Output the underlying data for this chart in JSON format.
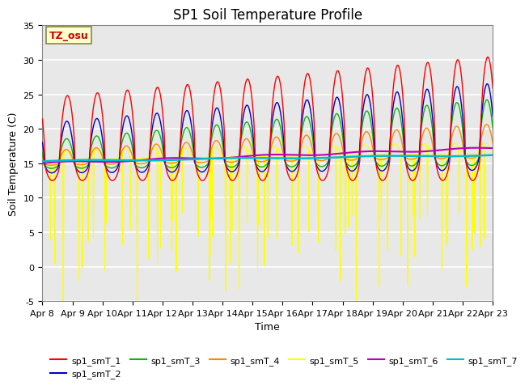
{
  "title": "SP1 Soil Temperature Profile",
  "xlabel": "Time",
  "ylabel": "Soil Temperature (C)",
  "ylim": [
    -5,
    35
  ],
  "xlim_days": [
    0,
    15
  ],
  "x_tick_labels": [
    "Apr 8",
    "Apr 9",
    "Apr 10",
    "Apr 11",
    "Apr 12",
    "Apr 13",
    "Apr 14",
    "Apr 15",
    "Apr 16",
    "Apr 17",
    "Apr 18",
    "Apr 19",
    "Apr 20",
    "Apr 21",
    "Apr 22",
    "Apr 23"
  ],
  "annotation_text": "TZ_osu",
  "annotation_bg": "#ffffcc",
  "annotation_color": "#cc0000",
  "annotation_edge": "#888844",
  "series_colors": [
    "#ff0000",
    "#0000cc",
    "#00bb00",
    "#ff8800",
    "#ffff00",
    "#bb00bb",
    "#00bbcc"
  ],
  "series_labels": [
    "sp1_smT_1",
    "sp1_smT_2",
    "sp1_smT_3",
    "sp1_smT_4",
    "sp1_smT_5",
    "sp1_smT_6",
    "sp1_smT_7"
  ],
  "background_color": "#e8e8e8",
  "title_fontsize": 12,
  "axis_label_fontsize": 9,
  "tick_fontsize": 8,
  "legend_fontsize": 8
}
